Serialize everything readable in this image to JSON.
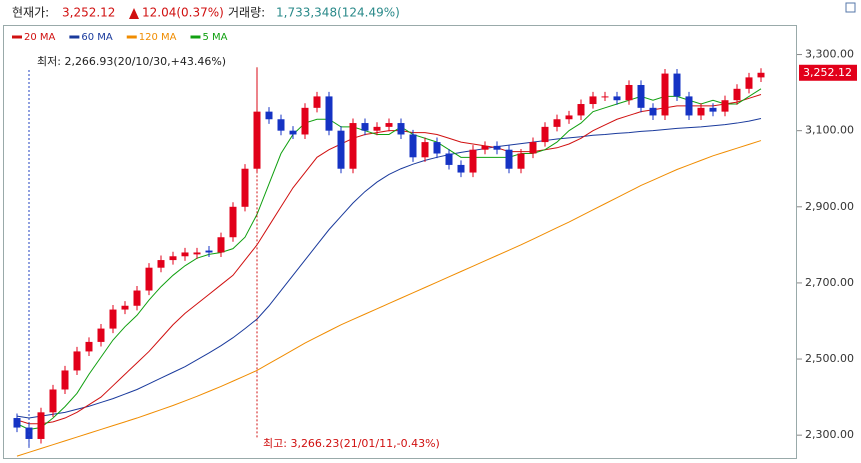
{
  "chart_data": {
    "type": "candlestick",
    "header": {
      "price_label": "현재가:",
      "price": "3,252.12",
      "change": "12.04(0.37%)",
      "volume_label": "거래량:",
      "volume": "1,733,348(124.49%)"
    },
    "annotations": {
      "low": "최저: 2,266.93(20/10/30,+43.46%)",
      "high": "최고: 3,266.23(21/01/11,-0.43%)"
    },
    "last_price": 3252.12,
    "last_price_label": "3,252.12",
    "up_color": "#e2001a",
    "down_color": "#1533c4",
    "open": [
      2345,
      2320,
      2290,
      2360,
      2420,
      2470,
      2520,
      2545,
      2580,
      2630,
      2640,
      2680,
      2740,
      2760,
      2770,
      2775,
      2785,
      2780,
      2820,
      2900,
      3000,
      3150,
      3130,
      3100,
      3090,
      3160,
      3190,
      3100,
      3000,
      3120,
      3100,
      3110,
      3120,
      3090,
      3030,
      3070,
      3040,
      3010,
      2990,
      3050,
      3060,
      3050,
      3000,
      3040,
      3070,
      3110,
      3130,
      3140,
      3170,
      3190,
      3190,
      3180,
      3220,
      3160,
      3140,
      3250,
      3190,
      3140,
      3160,
      3150,
      3180,
      3210,
      3240
    ],
    "high": [
      2357,
      2332,
      2372,
      2432,
      2482,
      2532,
      2557,
      2592,
      2642,
      2652,
      2692,
      2752,
      2772,
      2782,
      2792,
      2792,
      2797,
      2832,
      2912,
      3012,
      3266.23,
      3162,
      3142,
      3112,
      3172,
      3202,
      3202,
      3112,
      3132,
      3132,
      3122,
      3132,
      3132,
      3102,
      3082,
      3082,
      3052,
      3022,
      3062,
      3072,
      3072,
      3062,
      3052,
      3082,
      3122,
      3142,
      3152,
      3182,
      3202,
      3202,
      3202,
      3232,
      3232,
      3172,
      3262,
      3262,
      3202,
      3172,
      3172,
      3192,
      3222,
      3252,
      3264
    ],
    "low": [
      2308,
      2266.93,
      2278,
      2348,
      2408,
      2458,
      2508,
      2533,
      2568,
      2618,
      2628,
      2668,
      2728,
      2748,
      2758,
      2763,
      2768,
      2768,
      2808,
      2888,
      2988,
      3118,
      3088,
      3078,
      3078,
      3148,
      3088,
      2988,
      2988,
      3088,
      3088,
      3098,
      3078,
      3018,
      3018,
      3028,
      2998,
      2978,
      2978,
      3038,
      3038,
      2988,
      2988,
      3028,
      3058,
      3098,
      3118,
      3128,
      3158,
      3178,
      3168,
      3168,
      3148,
      3128,
      3128,
      3178,
      3128,
      3128,
      3138,
      3138,
      3168,
      3198,
      3228
    ],
    "close": [
      2320,
      2290,
      2360,
      2420,
      2470,
      2520,
      2545,
      2580,
      2630,
      2640,
      2680,
      2740,
      2760,
      2770,
      2780,
      2780,
      2780,
      2820,
      2900,
      3000,
      3150,
      3130,
      3100,
      3090,
      3160,
      3190,
      3100,
      3000,
      3120,
      3100,
      3110,
      3120,
      3090,
      3030,
      3070,
      3040,
      3010,
      2990,
      3050,
      3060,
      3050,
      3000,
      3040,
      3070,
      3110,
      3130,
      3140,
      3170,
      3190,
      3190,
      3180,
      3220,
      3160,
      3140,
      3250,
      3190,
      3140,
      3160,
      3150,
      3180,
      3210,
      3240,
      3252.12
    ],
    "series": [
      {
        "name": "20 MA",
        "color": "#d01010",
        "values": [
          2340,
          2330,
          2330,
          2335,
          2345,
          2360,
          2380,
          2400,
          2430,
          2460,
          2490,
          2520,
          2555,
          2590,
          2620,
          2645,
          2670,
          2695,
          2720,
          2760,
          2800,
          2850,
          2900,
          2950,
          2990,
          3030,
          3050,
          3065,
          3080,
          3090,
          3095,
          3100,
          3100,
          3095,
          3095,
          3090,
          3080,
          3070,
          3065,
          3060,
          3055,
          3045,
          3045,
          3045,
          3050,
          3055,
          3065,
          3080,
          3100,
          3115,
          3130,
          3140,
          3150,
          3155,
          3160,
          3165,
          3165,
          3165,
          3165,
          3170,
          3175,
          3185,
          3195
        ]
      },
      {
        "name": "60 MA",
        "color": "#1a3a9c",
        "values": [
          2350,
          2345,
          2350,
          2355,
          2360,
          2368,
          2376,
          2386,
          2396,
          2408,
          2420,
          2435,
          2450,
          2465,
          2480,
          2498,
          2516,
          2535,
          2556,
          2580,
          2605,
          2640,
          2680,
          2720,
          2760,
          2800,
          2840,
          2875,
          2910,
          2940,
          2965,
          2985,
          3000,
          3012,
          3022,
          3030,
          3037,
          3043,
          3048,
          3053,
          3058,
          3062,
          3066,
          3070,
          3074,
          3078,
          3081,
          3084,
          3088,
          3090,
          3093,
          3095,
          3098,
          3100,
          3103,
          3106,
          3108,
          3110,
          3113,
          3116,
          3120,
          3125,
          3132
        ]
      },
      {
        "name": "120 MA",
        "color": "#f08c00",
        "values": [
          2245,
          2255,
          2265,
          2275,
          2285,
          2295,
          2305,
          2315,
          2325,
          2335,
          2345,
          2356,
          2367,
          2378,
          2390,
          2402,
          2415,
          2428,
          2442,
          2456,
          2470,
          2488,
          2506,
          2524,
          2542,
          2558,
          2574,
          2590,
          2604,
          2618,
          2632,
          2646,
          2660,
          2674,
          2688,
          2702,
          2716,
          2730,
          2744,
          2758,
          2772,
          2786,
          2800,
          2815,
          2830,
          2845,
          2860,
          2876,
          2892,
          2908,
          2924,
          2940,
          2956,
          2970,
          2984,
          2998,
          3010,
          3022,
          3034,
          3044,
          3054,
          3064,
          3074
        ]
      },
      {
        "name": "5 MA",
        "color": "#10a010",
        "values": [
          2330,
          2315,
          2320,
          2345,
          2375,
          2410,
          2460,
          2505,
          2550,
          2585,
          2615,
          2655,
          2690,
          2720,
          2745,
          2765,
          2775,
          2780,
          2790,
          2820,
          2880,
          2960,
          3040,
          3090,
          3120,
          3130,
          3130,
          3110,
          3110,
          3100,
          3090,
          3090,
          3110,
          3090,
          3080,
          3070,
          3050,
          3030,
          3030,
          3030,
          3030,
          3030,
          3040,
          3040,
          3050,
          3070,
          3100,
          3120,
          3150,
          3160,
          3170,
          3180,
          3190,
          3180,
          3190,
          3190,
          3180,
          3170,
          3180,
          3170,
          3170,
          3190,
          3210
        ]
      }
    ],
    "ylim": [
      2240,
      3375
    ],
    "yticks": [
      {
        "value": 2300,
        "label": "2,300.00"
      },
      {
        "value": 2500,
        "label": "2,500.00"
      },
      {
        "value": 2700,
        "label": "2,700.00"
      },
      {
        "value": 2900,
        "label": "2,900.00"
      },
      {
        "value": 3100,
        "label": "3,100.00"
      },
      {
        "value": 3300,
        "label": "3,300.00"
      }
    ]
  }
}
